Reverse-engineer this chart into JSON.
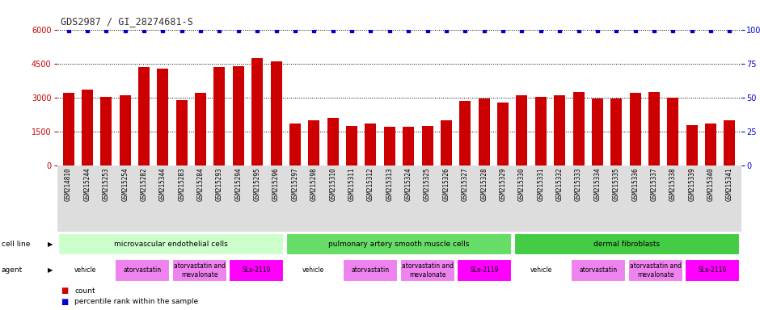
{
  "title": "GDS2987 / GI_28274681-S",
  "samples": [
    "GSM214810",
    "GSM215244",
    "GSM215253",
    "GSM215254",
    "GSM215282",
    "GSM215344",
    "GSM215283",
    "GSM215284",
    "GSM215293",
    "GSM215294",
    "GSM215295",
    "GSM215296",
    "GSM215297",
    "GSM215298",
    "GSM215310",
    "GSM215311",
    "GSM215312",
    "GSM215313",
    "GSM215324",
    "GSM215325",
    "GSM215326",
    "GSM215327",
    "GSM215328",
    "GSM215329",
    "GSM215330",
    "GSM215331",
    "GSM215332",
    "GSM215333",
    "GSM215334",
    "GSM215335",
    "GSM215336",
    "GSM215337",
    "GSM215338",
    "GSM215339",
    "GSM215340",
    "GSM215341"
  ],
  "counts": [
    3200,
    3350,
    3050,
    3100,
    4350,
    4300,
    2900,
    3200,
    4350,
    4400,
    4750,
    4600,
    1850,
    2000,
    2100,
    1750,
    1850,
    1700,
    1700,
    1750,
    2000,
    2850,
    2950,
    2800,
    3100,
    3050,
    3100,
    3250,
    2950,
    2950,
    3200,
    3250,
    3000,
    1800,
    1850,
    2000
  ],
  "cell_lines": [
    {
      "label": "microvascular endothelial cells",
      "start": 0,
      "end": 12,
      "color": "#CCFFCC"
    },
    {
      "label": "pulmonary artery smooth muscle cells",
      "start": 12,
      "end": 24,
      "color": "#66DD66"
    },
    {
      "label": "dermal fibroblasts",
      "start": 24,
      "end": 36,
      "color": "#44CC44"
    }
  ],
  "agents": [
    {
      "label": "vehicle",
      "start": 0,
      "end": 3,
      "color": "#FFFFFF"
    },
    {
      "label": "atorvastatin",
      "start": 3,
      "end": 6,
      "color": "#EE82EE"
    },
    {
      "label": "atorvastatin and\nmevalonate",
      "start": 6,
      "end": 9,
      "color": "#EE82EE"
    },
    {
      "label": "SLx-2119",
      "start": 9,
      "end": 12,
      "color": "#FF00FF"
    },
    {
      "label": "vehicle",
      "start": 12,
      "end": 15,
      "color": "#FFFFFF"
    },
    {
      "label": "atorvastatin",
      "start": 15,
      "end": 18,
      "color": "#EE82EE"
    },
    {
      "label": "atorvastatin and\nmevalonate",
      "start": 18,
      "end": 21,
      "color": "#EE82EE"
    },
    {
      "label": "SLx-2119",
      "start": 21,
      "end": 24,
      "color": "#FF00FF"
    },
    {
      "label": "vehicle",
      "start": 24,
      "end": 27,
      "color": "#FFFFFF"
    },
    {
      "label": "atorvastatin",
      "start": 27,
      "end": 30,
      "color": "#EE82EE"
    },
    {
      "label": "atorvastatin and\nmevalonate",
      "start": 30,
      "end": 33,
      "color": "#EE82EE"
    },
    {
      "label": "SLx-2119",
      "start": 33,
      "end": 36,
      "color": "#FF00FF"
    }
  ],
  "bar_color": "#CC0000",
  "dot_color": "#0000CC",
  "ylim_left": [
    0,
    6000
  ],
  "ylim_right": [
    0,
    100
  ],
  "yticks_left": [
    0,
    1500,
    3000,
    4500,
    6000
  ],
  "yticks_right": [
    0,
    25,
    50,
    75,
    100
  ],
  "title_color": "#333333",
  "left_axis_color": "#CC0000",
  "right_axis_color": "#0000CC",
  "bg_color": "#ffffff",
  "xtick_bg": "#DDDDDD",
  "cell_row_bg": "#ffffff",
  "agent_row_bg": "#ffffff"
}
